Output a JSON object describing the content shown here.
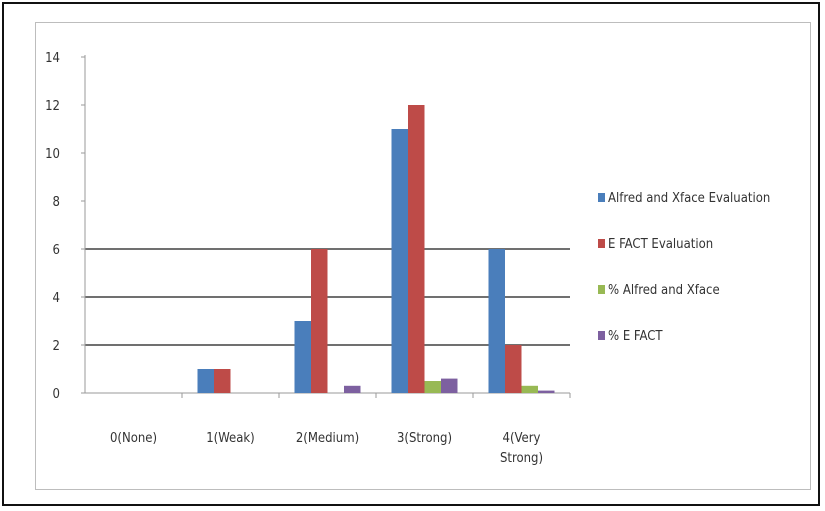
{
  "chart_data": {
    "type": "bar",
    "categories": [
      "0(None)",
      "1(Weak)",
      "2(Medium)",
      "3(Strong)",
      "4(Very Strong)"
    ],
    "category_lines": [
      [
        "0(None)"
      ],
      [
        "1(Weak)"
      ],
      [
        "2(Medium)"
      ],
      [
        "3(Strong)"
      ],
      [
        "4(Very",
        "Strong)"
      ]
    ],
    "series": [
      {
        "name": "Alfred and Xface Evaluation",
        "color": "#4a7ebb",
        "values": [
          0,
          1,
          3,
          11,
          6
        ]
      },
      {
        "name": "E FACT Evaluation",
        "color": "#be4b48",
        "values": [
          0,
          1,
          6,
          12,
          2
        ]
      },
      {
        "name": "% Alfred and Xface",
        "color": "#98b954",
        "values": [
          0,
          0,
          0,
          0.5,
          0.3
        ]
      },
      {
        "name": "% E FACT",
        "color": "#7d60a0",
        "values": [
          0,
          0,
          0.3,
          0.6,
          0.1
        ]
      }
    ],
    "ylim": [
      0,
      14
    ],
    "yticks": [
      "0",
      "2",
      "4",
      "6",
      "8",
      "10",
      "12",
      "14"
    ],
    "grid_lines_at": [
      2,
      4,
      6
    ],
    "legend_position": "right",
    "title": "",
    "xlabel": "",
    "ylabel": ""
  }
}
